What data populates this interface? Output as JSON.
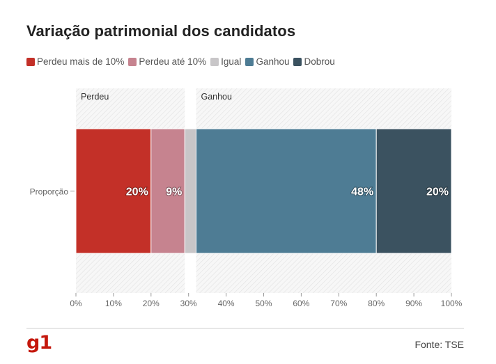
{
  "title": "Variação patrimonial dos candidatos",
  "legend": [
    {
      "label": "Perdeu mais de 10%",
      "color": "#c33028"
    },
    {
      "label": "Perdeu até 10%",
      "color": "#c6838f"
    },
    {
      "label": "Igual",
      "color": "#c8c6c8"
    },
    {
      "label": "Ganhou",
      "color": "#4e7c94"
    },
    {
      "label": "Dobrou",
      "color": "#3b5260"
    }
  ],
  "source": "Fonte: TSE",
  "logo": "g1",
  "chart_data": {
    "type": "bar",
    "orientation": "horizontal-stacked",
    "categories": [
      "Proporção"
    ],
    "series": [
      {
        "name": "Perdeu mais de 10%",
        "values": [
          20
        ],
        "label": "20%",
        "color": "#c33028"
      },
      {
        "name": "Perdeu até 10%",
        "values": [
          9
        ],
        "label": "9%",
        "color": "#c6838f"
      },
      {
        "name": "Igual",
        "values": [
          3
        ],
        "label": "",
        "color": "#c8c6c8"
      },
      {
        "name": "Ganhou",
        "values": [
          48
        ],
        "label": "48%",
        "color": "#4e7c94"
      },
      {
        "name": "Dobrou",
        "values": [
          20
        ],
        "label": "20%",
        "color": "#3b5260"
      }
    ],
    "regions": [
      {
        "label": "Perdeu",
        "from": 0,
        "to": 29
      },
      {
        "label": "Ganhou",
        "from": 32,
        "to": 100
      }
    ],
    "xlim": [
      0,
      100
    ],
    "xticks": [
      "0%",
      "10%",
      "20%",
      "30%",
      "40%",
      "50%",
      "60%",
      "70%",
      "80%",
      "90%",
      "100%"
    ],
    "xlabel": "",
    "ylabel": "",
    "legend_position": "top-left"
  }
}
